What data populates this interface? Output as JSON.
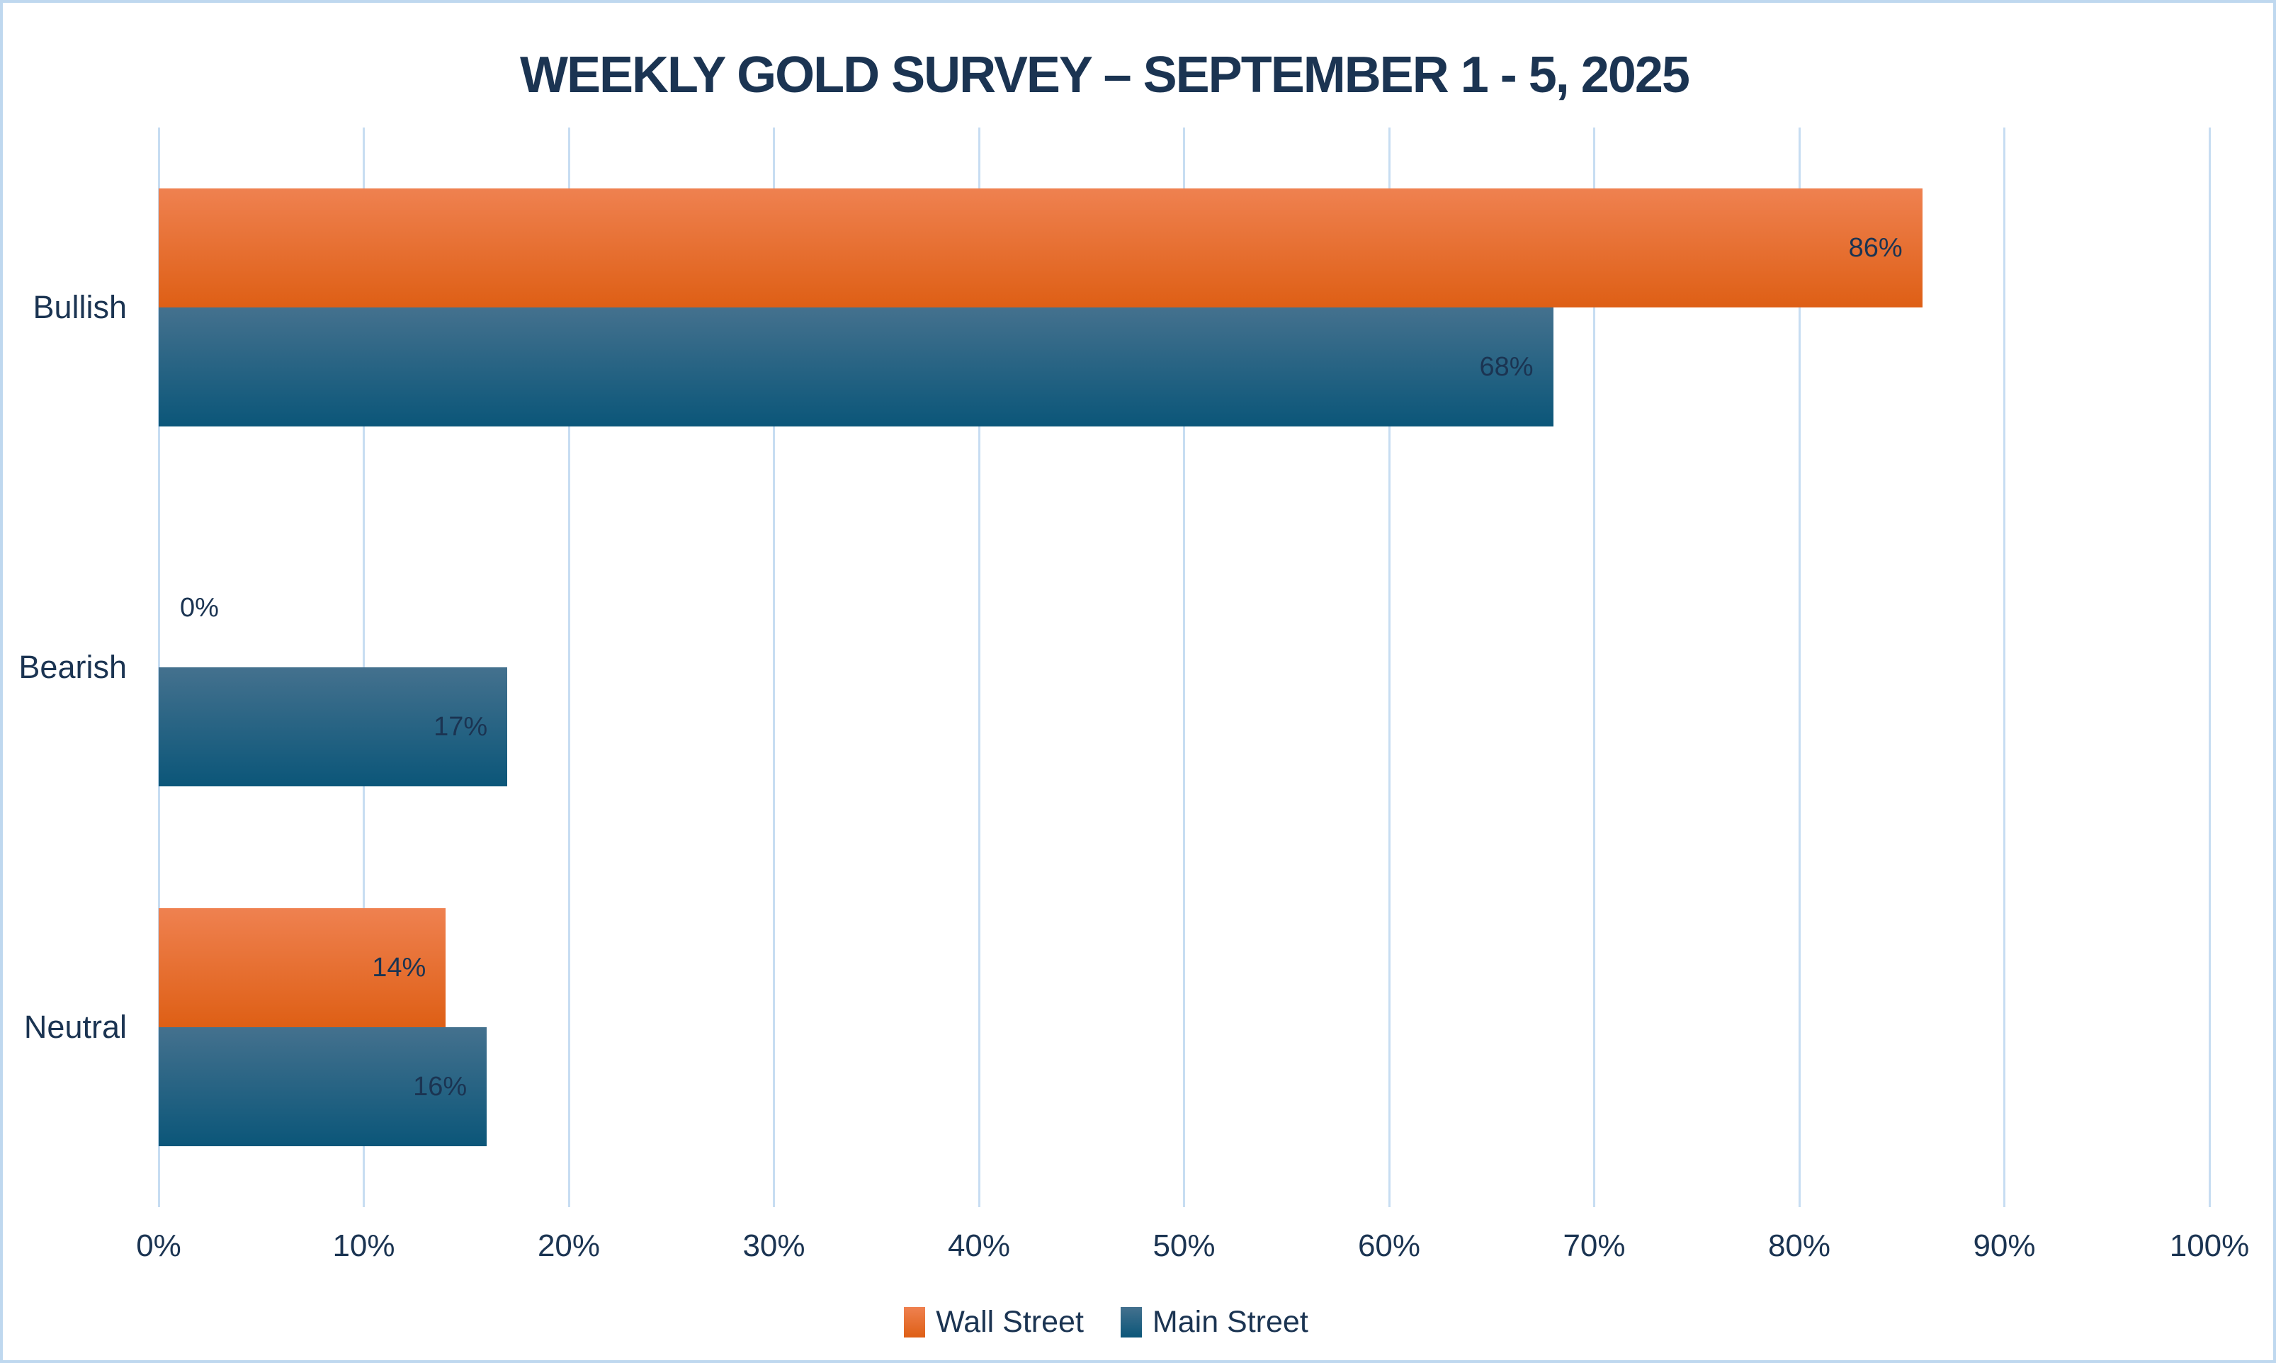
{
  "chart_data": {
    "type": "bar",
    "orientation": "horizontal",
    "title": "WEEKLY GOLD SURVEY – SEPTEMBER 1  - 5, 2025",
    "categories": [
      "Bullish",
      "Bearish",
      "Neutral"
    ],
    "series": [
      {
        "name": "Wall Street",
        "values": [
          86,
          0,
          14
        ],
        "gradient_top": "#EF8150",
        "gradient_bottom": "#DE5F15"
      },
      {
        "name": "Main Street",
        "values": [
          68,
          17,
          16
        ],
        "gradient_top": "#44718E",
        "gradient_bottom": "#0B5679"
      }
    ],
    "data_labels": [
      [
        "86%",
        "0%",
        "14%"
      ],
      [
        "68%",
        "17%",
        "16%"
      ]
    ],
    "xlabel": "",
    "ylabel": "",
    "xlim": [
      0,
      100
    ],
    "x_ticks": [
      "0%",
      "10%",
      "20%",
      "30%",
      "40%",
      "50%",
      "60%",
      "70%",
      "80%",
      "90%",
      "100%"
    ],
    "grid": true,
    "legend_position": "bottom"
  },
  "colors": {
    "title_text": "#1B3452",
    "axis_text": "#1B3452",
    "data_label_text": "#1B3452",
    "grid_line": "#C7DDF2",
    "frame_border": "#BFD8EF",
    "background": "#FFFFFF"
  }
}
